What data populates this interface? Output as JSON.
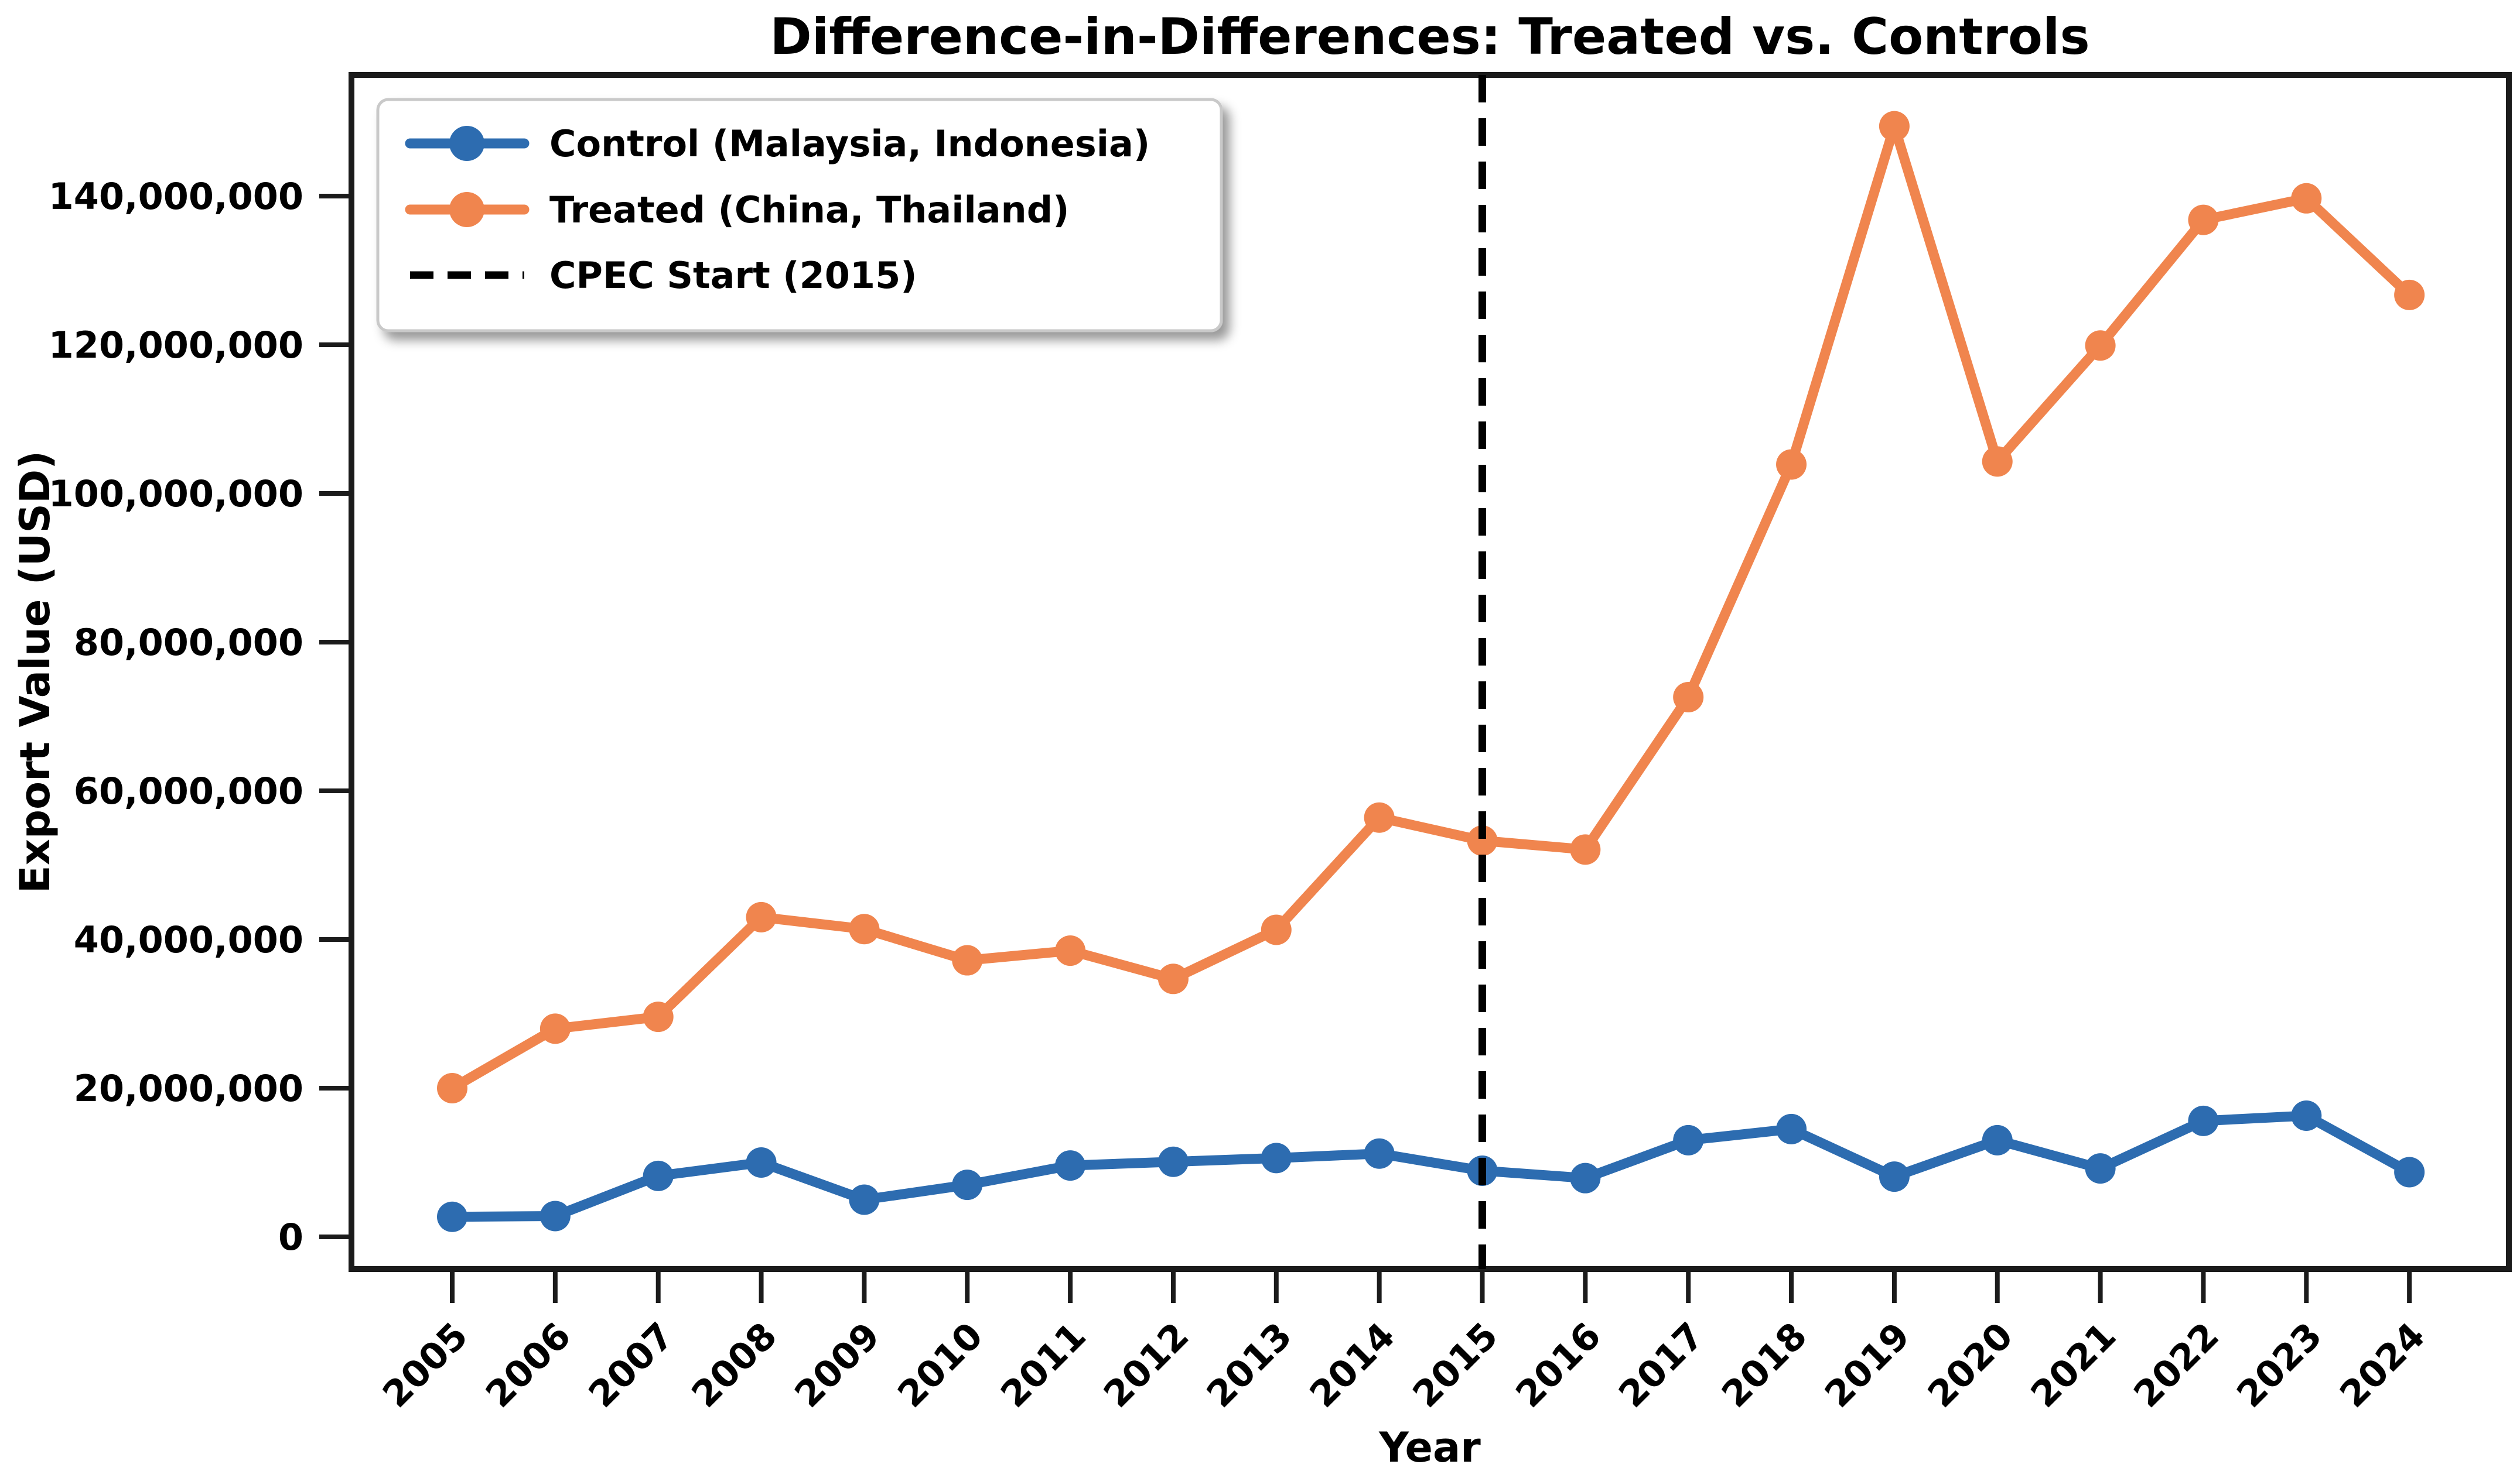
{
  "title": "Difference-in-Differences: Treated vs. Controls",
  "chart_data": {
    "type": "line",
    "title": "Difference-in-Differences: Treated vs. Controls",
    "xlabel": "Year",
    "ylabel": "Export Value (USD)",
    "x": [
      2005,
      2006,
      2007,
      2008,
      2009,
      2010,
      2011,
      2012,
      2013,
      2014,
      2015,
      2016,
      2017,
      2018,
      2019,
      2020,
      2021,
      2022,
      2023,
      2024
    ],
    "series": [
      {
        "name": "Control (Malaysia, Indonesia)",
        "color": "#2D6CB0",
        "marker": "circle",
        "values": [
          2700000,
          2800000,
          8200000,
          10000000,
          5000000,
          7000000,
          9600000,
          10100000,
          10600000,
          11200000,
          8900000,
          7900000,
          13000000,
          14500000,
          8100000,
          13000000,
          9200000,
          15600000,
          16300000,
          8700000
        ]
      },
      {
        "name": "Treated (China, Thailand)",
        "color": "#F0854E",
        "marker": "circle",
        "values": [
          20000000,
          28000000,
          29600000,
          43000000,
          41400000,
          37200000,
          38500000,
          34700000,
          41300000,
          56400000,
          53300000,
          52100000,
          72600000,
          103900000,
          149400000,
          104300000,
          119900000,
          136800000,
          139700000,
          126700000
        ]
      }
    ],
    "vline": {
      "x": 2015,
      "label": "CPEC Start (2015)",
      "color": "#000000",
      "style": "dashed"
    },
    "yticks": [
      0,
      20000000,
      40000000,
      60000000,
      80000000,
      100000000,
      120000000,
      140000000
    ],
    "ytick_labels": [
      "0",
      "20,000,000",
      "40,000,000",
      "60,000,000",
      "80,000,000",
      "100,000,000",
      "120,000,000",
      "140,000,000"
    ],
    "ylim": [
      -4300000,
      156300000
    ],
    "xlim_years": [
      2004.0,
      2025.0
    ],
    "grid": false,
    "legend_position": "upper left",
    "axis_color": "#1b1b1b",
    "background_color": "#ffffff"
  }
}
